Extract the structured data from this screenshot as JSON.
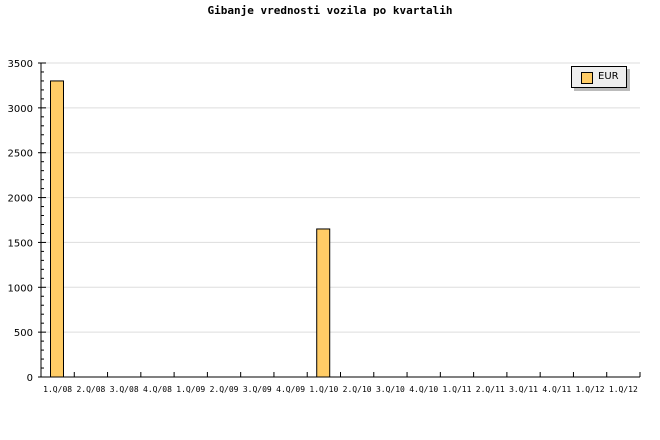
{
  "chart_data": {
    "type": "bar",
    "title": "Gibanje vrednosti vozila po kvartalih",
    "categories": [
      "1.Q/08",
      "2.Q/08",
      "3.Q/08",
      "4.Q/08",
      "1.Q/09",
      "2.Q/09",
      "3.Q/09",
      "4.Q/09",
      "1.Q/10",
      "2.Q/10",
      "3.Q/10",
      "4.Q/10",
      "1.Q/11",
      "2.Q/11",
      "3.Q/11",
      "4.Q/11",
      "1.Q/12",
      "1.Q/12"
    ],
    "series": [
      {
        "name": "EUR",
        "values": [
          3300,
          0,
          0,
          0,
          0,
          0,
          0,
          0,
          1650,
          0,
          0,
          0,
          0,
          0,
          0,
          0,
          0,
          0
        ]
      }
    ],
    "ylim": [
      0,
      3500
    ],
    "yticks": [
      0,
      500,
      1000,
      1500,
      2000,
      2500,
      3000,
      3500
    ],
    "grid": true,
    "legend": "top-right",
    "colors": {
      "bar": "#ffcc66",
      "grid": "#dddddd",
      "legend_bg": "#eeeeee"
    }
  }
}
